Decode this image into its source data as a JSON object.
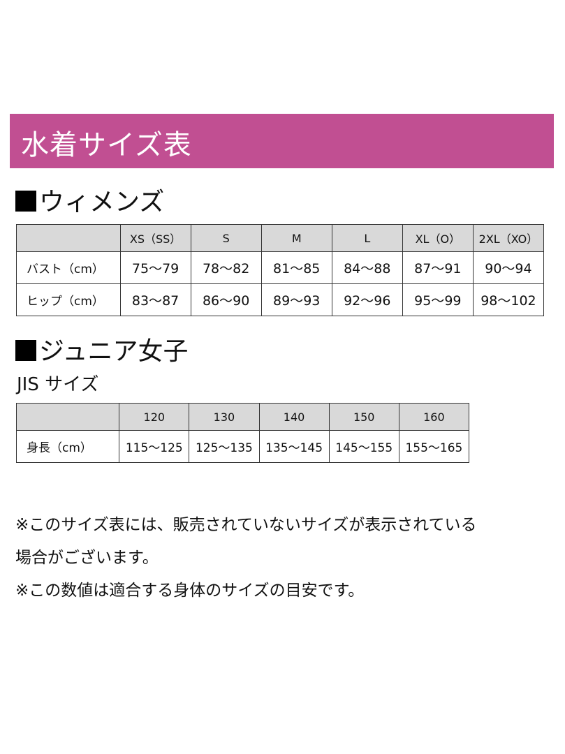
{
  "banner": {
    "title": "水着サイズ表",
    "color": "#c14f92"
  },
  "womens": {
    "heading": "ウィメンズ",
    "columns": [
      "",
      "XS（SS）",
      "S",
      "M",
      "L",
      "XL（O）",
      "2XL（XO）"
    ],
    "rows": [
      {
        "label": "バスト（cm）",
        "values": [
          "75〜79",
          "78〜82",
          "81〜85",
          "84〜88",
          "87〜91",
          "90〜94"
        ]
      },
      {
        "label": "ヒップ（cm）",
        "values": [
          "83〜87",
          "86〜90",
          "89〜93",
          "92〜96",
          "95〜99",
          "98〜102"
        ]
      }
    ]
  },
  "junior": {
    "heading": "ジュニア女子",
    "subheading": "JIS サイズ",
    "columns": [
      "",
      "120",
      "130",
      "140",
      "150",
      "160"
    ],
    "rows": [
      {
        "label": "身長（cm）",
        "values": [
          "115〜125",
          "125〜135",
          "135〜145",
          "145〜155",
          "155〜165"
        ]
      }
    ]
  },
  "notes": {
    "line1": "※このサイズ表には、販売されていないサイズが表示されている",
    "line2": "場合がございます。",
    "line3": "※この数値は適合する身体のサイズの目安です。"
  }
}
